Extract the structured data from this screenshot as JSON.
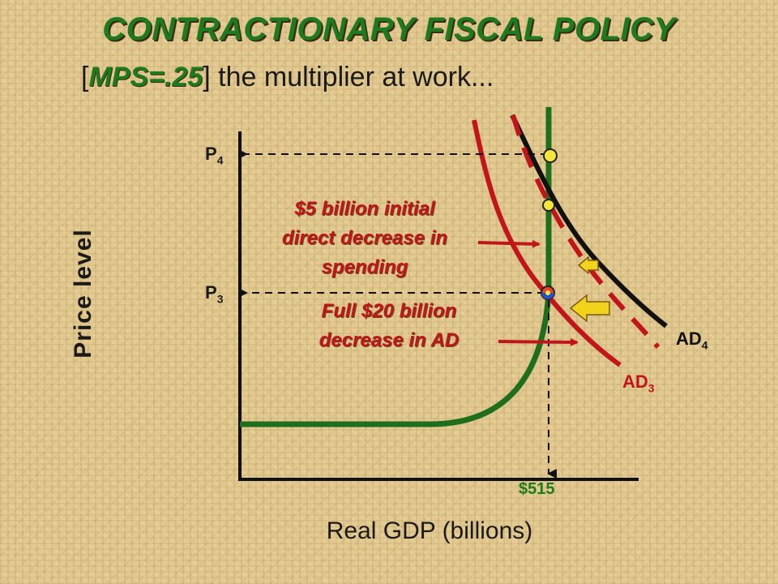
{
  "title": "CONTRACTIONARY FISCAL POLICY",
  "subtitle": {
    "open_bracket": "[",
    "mps": "MPS=.25",
    "close_bracket": "]",
    "rest": " the multiplier at work..."
  },
  "axes": {
    "y_label": "Price level",
    "x_label": "Real GDP (billions)"
  },
  "price_labels": {
    "p4": {
      "letter": "P",
      "sub": "4"
    },
    "p3": {
      "letter": "P",
      "sub": "3"
    }
  },
  "gdp_value": "$515",
  "curves": {
    "ad4": {
      "letter": "AD",
      "sub": "4",
      "color": "#111111"
    },
    "ad3": {
      "letter": "AD",
      "sub": "3",
      "color": "#c0161b"
    },
    "aggregate_supply_color": "#1e6e1e"
  },
  "annotations": {
    "initial": [
      "$5 billion initial",
      "direct decrease in",
      "spending"
    ],
    "full": [
      "Full $20 billion",
      "decrease in AD"
    ]
  },
  "colors": {
    "title_green": "#1e7a1e",
    "annotation_red": "#c0161b",
    "arrow_yellow": "#f2d21a",
    "point_yellow": "#f5e63a"
  }
}
